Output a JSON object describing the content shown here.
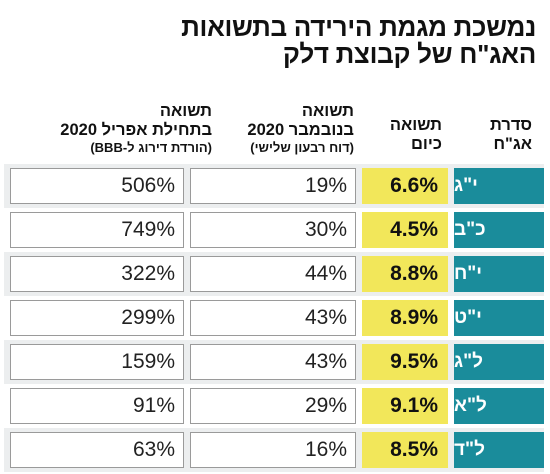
{
  "title": {
    "line1": "נמשכת מגמת הירידה בתשואות",
    "line2": "האג\"ח של קבוצת דלק"
  },
  "columns": {
    "series": {
      "line1": "סדרת",
      "line2": "אג\"ח"
    },
    "today": {
      "line1": "תשואה",
      "line2": "כיום"
    },
    "november": {
      "line1": "תשואה",
      "line2": "בנובמבר 2020",
      "note": "(דוח רבעון שלישי)"
    },
    "april": {
      "line1": "תשואה",
      "line2": "בתחילת אפריל 2020",
      "note": "(הורדת דירוג ל-BBB)"
    }
  },
  "rows": [
    {
      "series": "י\"ג",
      "today": "6.6%",
      "november": "19%",
      "april": "506%"
    },
    {
      "series": "כ\"ב",
      "today": "4.5%",
      "november": "30%",
      "april": "749%"
    },
    {
      "series": "י\"ח",
      "today": "8.8%",
      "november": "44%",
      "april": "322%"
    },
    {
      "series": "י\"ט",
      "today": "8.9%",
      "november": "43%",
      "april": "299%"
    },
    {
      "series": "ל\"ג",
      "today": "9.5%",
      "november": "43%",
      "april": "159%"
    },
    {
      "series": "ל\"א",
      "today": "9.1%",
      "november": "29%",
      "april": "91%"
    },
    {
      "series": "ל\"ד",
      "today": "8.5%",
      "november": "16%",
      "april": "63%"
    }
  ],
  "colors": {
    "series_bg": "#1a8c9b",
    "today_bg": "#f2e75a",
    "row_shade": "#eceeef"
  }
}
